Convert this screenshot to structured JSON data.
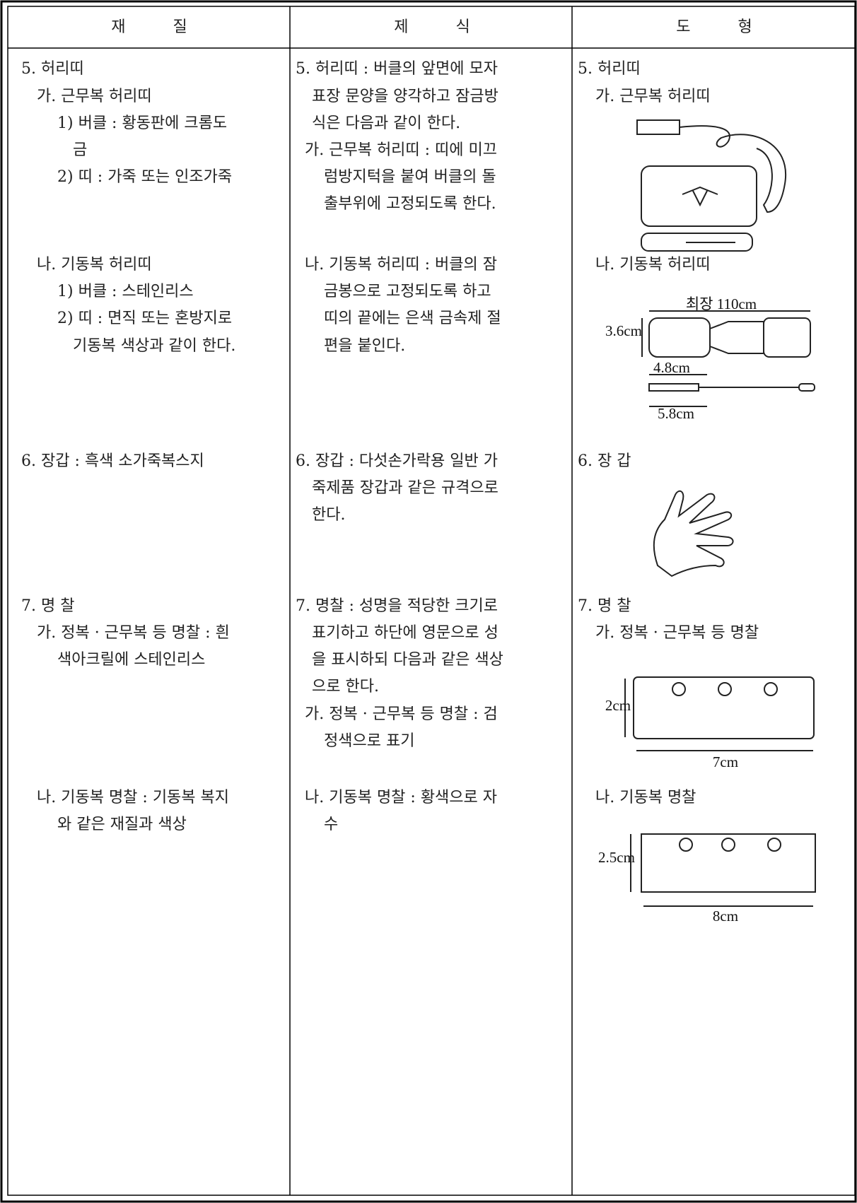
{
  "header": [
    "재 질",
    "제 식",
    "도 형"
  ],
  "material": [
    "5. 허리띠",
    "가. 근무복 허리띠",
    "1) 버클 : 황동판에 크롬도",
    "금",
    "2) 띠 : 가죽 또는 인조가죽",
    "나. 기동복 허리띠",
    "1) 버클 : 스테인리스",
    "2) 띠 : 면직 또는 혼방지로",
    "기동복 색상과 같이 한다.",
    "6. 장갑 : 흑색 소가죽복스지",
    "7. 명 찰",
    "가. 정복 · 근무복 등 명찰 : 흰",
    "색아크릴에 스테인리스",
    "나. 기동복 명찰 : 기동복 복지",
    "와 같은 재질과 색상"
  ],
  "format": [
    "5. 허리띠 : 버클의 앞면에 모자",
    "표장 문양을 양각하고 잠금방",
    "식은 다음과 같이 한다.",
    "가. 근무복 허리띠 : 띠에 미끄",
    "럼방지턱을 붙여 버클의 돌",
    "출부위에 고정되도록 한다.",
    "나. 기동복 허리띠 : 버클의 잠",
    "금봉으로 고정되도록 하고",
    "띠의 끝에는 은색 금속제 절",
    "편을 붙인다.",
    "6. 장갑 : 다섯손가락용 일반 가",
    "죽제품 장갑과 같은 규격으로",
    "한다.",
    "7. 명찰 : 성명을 적당한 크기로",
    "표기하고 하단에 영문으로 성",
    "을 표시하되 다음과 같은 색상",
    "으로 한다.",
    "가. 정복 · 근무복 등 명찰 : 검",
    "정색으로 표기",
    "나. 기동복 명찰 : 황색으로 자",
    "수"
  ],
  "figure": [
    "5. 허리띠",
    "가. 근무복 허리띠",
    "나. 기동복 허리띠",
    "6. 장 갑",
    "7. 명 찰",
    "가. 정복 · 근무복 등 명찰",
    "나. 기동복 명찰"
  ],
  "figure_labels": [
    "최장 110cm",
    "3.6cm",
    "4.8cm",
    "5.8cm",
    "2cm",
    "7cm",
    "2.5cm",
    "8cm"
  ]
}
